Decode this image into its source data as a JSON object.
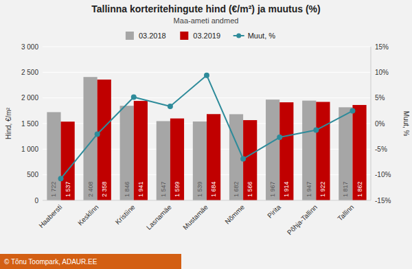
{
  "chart_data": {
    "type": "bar",
    "title": "Tallinna korteritehingute hind (€/m²) ja muutus (%)",
    "subtitle": "Maa-ameti andmed",
    "ylabel": "Hind, €/m²",
    "y2label": "Muut, %",
    "annotations": [
      "© Tõnu Toompark, ADAUR.EE"
    ],
    "categories": [
      "Haabersti",
      "Kesklinn",
      "Kristiine",
      "Lasnamäe",
      "Mustamäe",
      "Nõmme",
      "Pirita",
      "Põhja-Tallinn",
      "Tallinn"
    ],
    "series": [
      {
        "name": "03.2018",
        "color": "#a6a6a6",
        "values": [
          1722,
          2408,
          1846,
          1547,
          1539,
          1682,
          1967,
          1947,
          1817
        ],
        "value_labels": [
          "1 722",
          "2 408",
          "1 846",
          "1 547",
          "1 539",
          "1 682",
          "1 967",
          "1 947",
          "1 817"
        ]
      },
      {
        "name": "03.2019",
        "color": "#c00000",
        "values": [
          1537,
          2358,
          1941,
          1599,
          1684,
          1566,
          1914,
          1922,
          1862
        ],
        "value_labels": [
          "1 537",
          "2 358",
          "1 941",
          "1 599",
          "1 684",
          "1 566",
          "1 914",
          "1 922",
          "1 862"
        ]
      },
      {
        "name": "Muut, %",
        "color": "#2e8b9a",
        "type": "line",
        "axis": "y2",
        "marker": "circle",
        "values": [
          -10.75,
          -2.07,
          5.15,
          3.36,
          9.42,
          -6.9,
          -2.69,
          -1.28,
          2.48
        ]
      }
    ],
    "ylim": [
      0,
      3000
    ],
    "yticks": [
      0,
      500,
      {
        "value": 1000,
        "label": "1 000"
      },
      {
        "value": 1500,
        "label": "1 500"
      },
      {
        "value": 2000,
        "label": "2 000"
      },
      {
        "value": 2500,
        "label": "2 500"
      },
      {
        "value": 3000,
        "label": "3 000"
      }
    ],
    "y2lim": [
      -15,
      15
    ],
    "y2ticks": [
      {
        "value": -15,
        "label": "-15%"
      },
      {
        "value": -10,
        "label": "-10%"
      },
      {
        "value": -5,
        "label": "-5%"
      },
      {
        "value": 0,
        "label": "0%"
      },
      {
        "value": 5,
        "label": "5%"
      },
      {
        "value": 10,
        "label": "10%"
      },
      {
        "value": 15,
        "label": "15%"
      }
    ],
    "grid": true,
    "legend": "top",
    "data_labels": true
  }
}
